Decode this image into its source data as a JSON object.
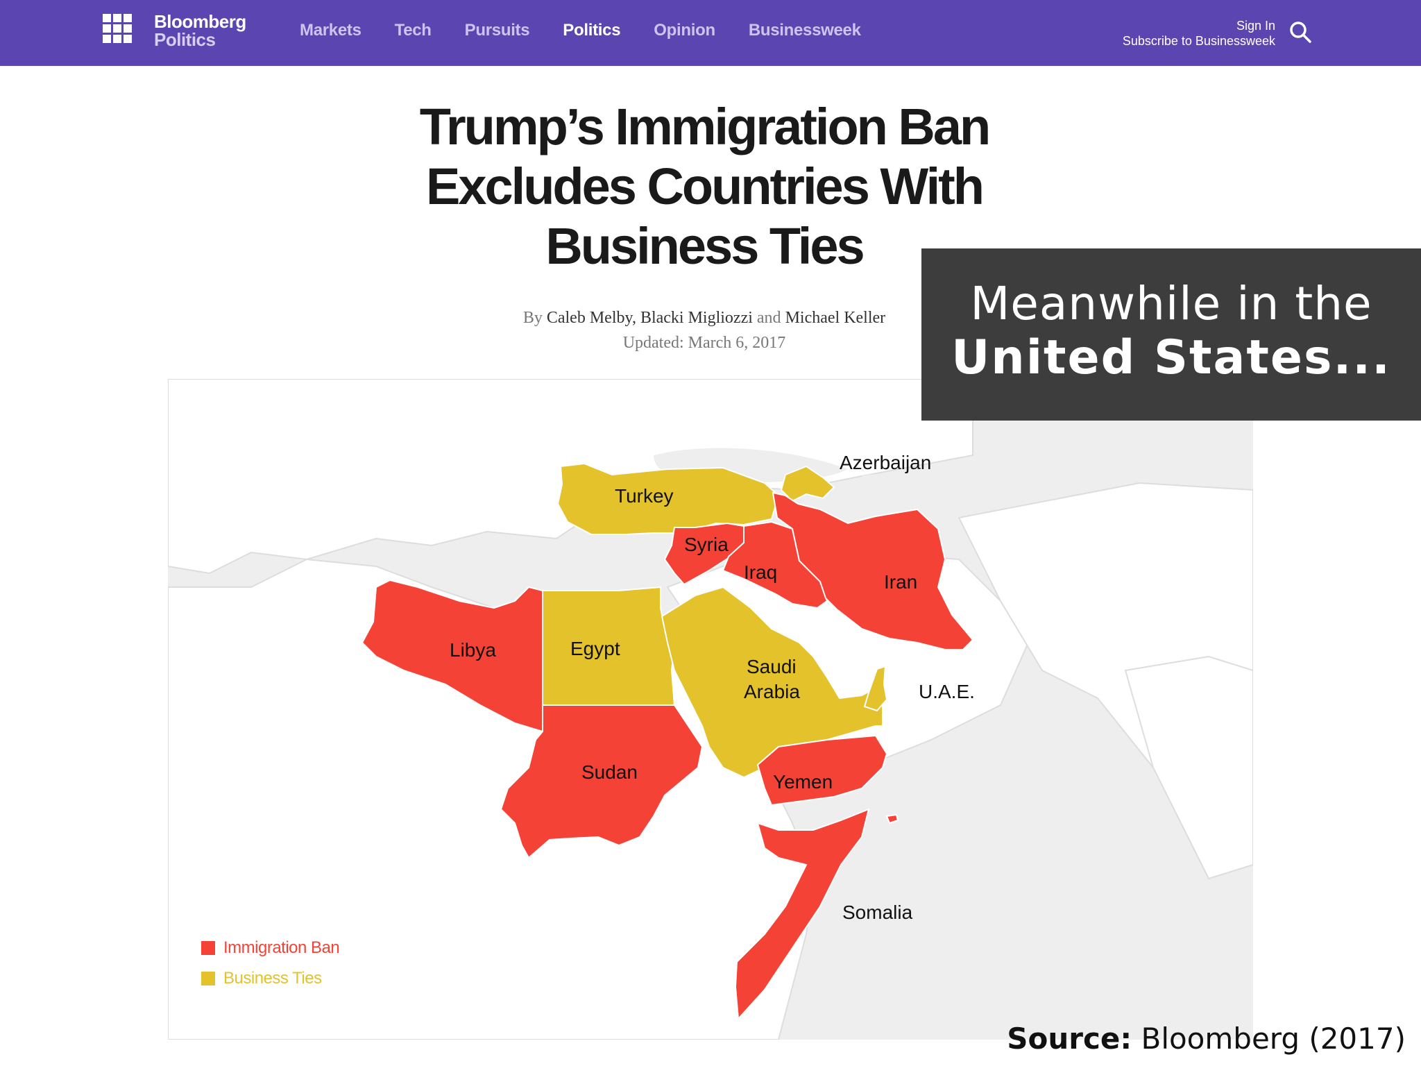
{
  "nav": {
    "brand_name": "Bloomberg",
    "brand_section": "Politics",
    "links": [
      "Markets",
      "Tech",
      "Pursuits",
      "Politics",
      "Opinion",
      "Businessweek"
    ],
    "active_link": "Politics",
    "sign_in": "Sign In",
    "subscribe": "Subscribe to Businessweek",
    "color": "#5b45b0"
  },
  "article": {
    "headline_lines": [
      "Trump’s Immigration Ban",
      "Excludes Countries With",
      "Business Ties"
    ],
    "by": "By",
    "authors": [
      "Caleb Melby",
      "Blacki Migliozzi",
      "Michael Keller"
    ],
    "and": "and",
    "updated": "Updated: March 6, 2017"
  },
  "map": {
    "colors": {
      "ban": "#f44336",
      "ties": "#e3c22c",
      "land": "#ffffff",
      "water": "#eeeeee"
    },
    "countries": {
      "turkey": "Turkey",
      "azerbaijan": "Azerbaijan",
      "syria": "Syria",
      "iraq": "Iraq",
      "iran": "Iran",
      "libya": "Libya",
      "egypt": "Egypt",
      "saudi_line1": "Saudi",
      "saudi_line2": "Arabia",
      "uae": "U.A.E.",
      "sudan": "Sudan",
      "yemen": "Yemen",
      "somalia": "Somalia"
    },
    "legend": [
      {
        "label": "Immigration Ban",
        "color": "#f44336"
      },
      {
        "label": "Business Ties",
        "color": "#e3c22c"
      }
    ]
  },
  "overlay": {
    "line1": "Meanwhile in the",
    "line2": "United States..."
  },
  "source": {
    "label": "Source:",
    "text": "Bloomberg (2017)"
  }
}
